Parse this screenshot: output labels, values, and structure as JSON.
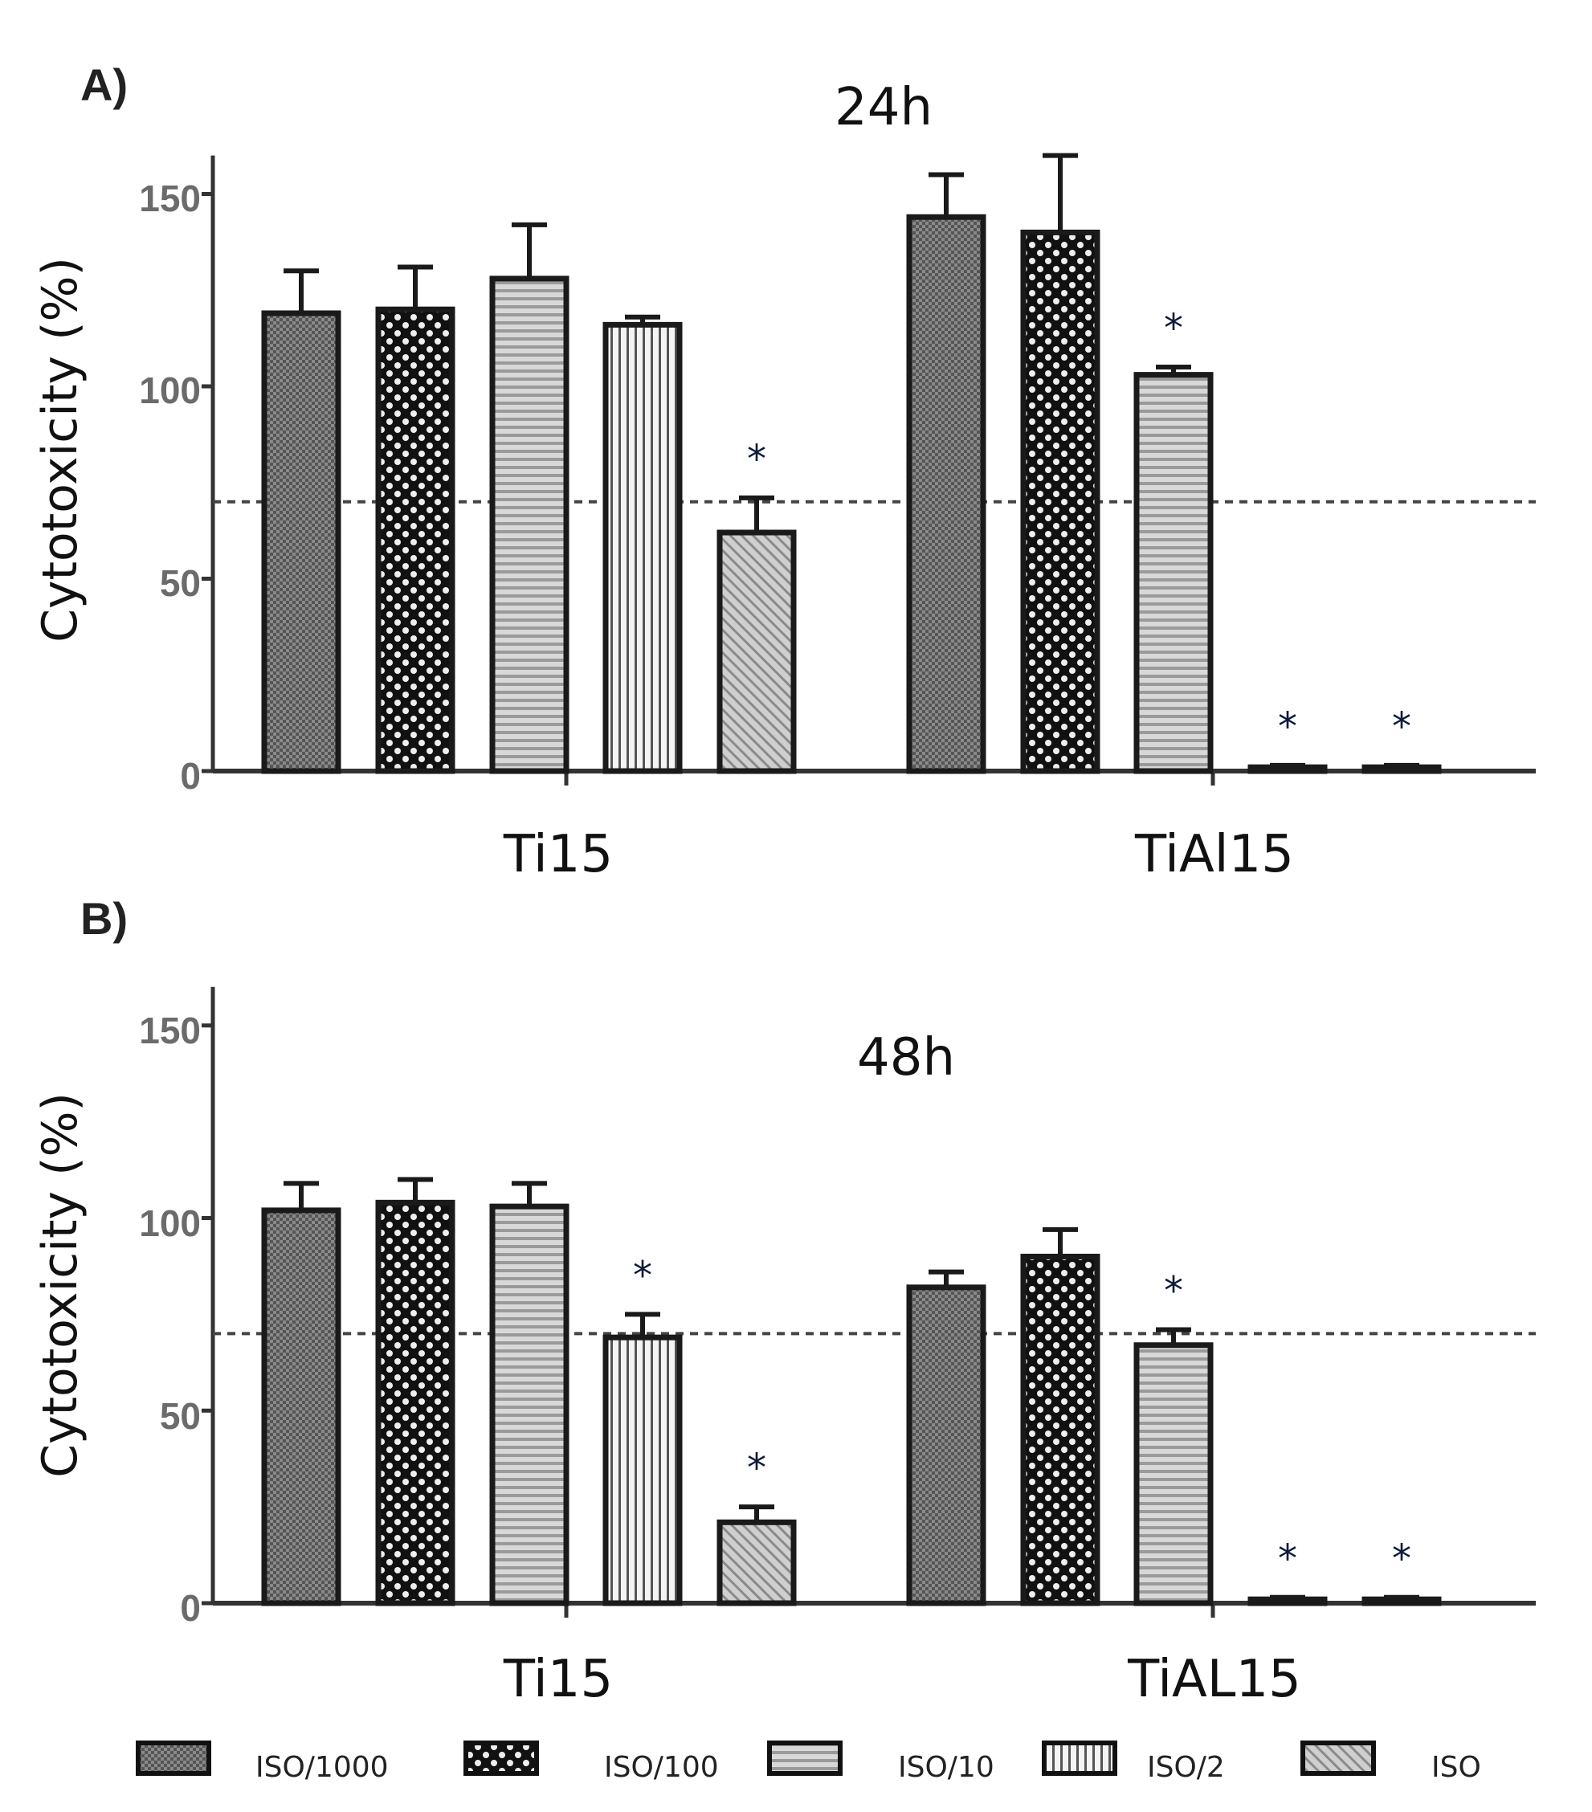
{
  "figure": {
    "legend": [
      {
        "label": "ISO/1000",
        "pattern": "dots"
      },
      {
        "label": "ISO/100",
        "pattern": "checker"
      },
      {
        "label": "ISO/10",
        "pattern": "hlines"
      },
      {
        "label": "ISO/2",
        "pattern": "vlines"
      },
      {
        "label": "ISO",
        "pattern": "diag"
      }
    ]
  },
  "chart_data": [
    {
      "type": "bar",
      "panel_label": "A)",
      "title": "24h",
      "ylabel": "Cytotoxicity (%)",
      "ylim": [
        0,
        160
      ],
      "yticks": [
        "0",
        "50",
        "100",
        "150"
      ],
      "reference_line": 70,
      "groups": [
        "Ti15",
        "TiAl15"
      ],
      "series": [
        {
          "name": "ISO/1000",
          "values": [
            119,
            144
          ],
          "errors": [
            11,
            11
          ],
          "significant": [
            false,
            false
          ]
        },
        {
          "name": "ISO/100",
          "values": [
            120,
            140
          ],
          "errors": [
            11,
            20
          ],
          "significant": [
            false,
            false
          ]
        },
        {
          "name": "ISO/10",
          "values": [
            128,
            103
          ],
          "errors": [
            14,
            2
          ],
          "significant": [
            false,
            true
          ]
        },
        {
          "name": "ISO/2",
          "values": [
            116,
            1
          ],
          "errors": [
            2,
            0.5
          ],
          "significant": [
            false,
            true
          ]
        },
        {
          "name": "ISO",
          "values": [
            62,
            1
          ],
          "errors": [
            9,
            0.5
          ],
          "significant": [
            true,
            true
          ]
        }
      ],
      "significance_marker": "*"
    },
    {
      "type": "bar",
      "panel_label": "B)",
      "title": "48h",
      "ylabel": "Cytotoxicity (%)",
      "ylim": [
        0,
        160
      ],
      "yticks": [
        "0",
        "50",
        "100",
        "150"
      ],
      "reference_line": 70,
      "groups": [
        "Ti15",
        "TiAL15"
      ],
      "series": [
        {
          "name": "ISO/1000",
          "values": [
            102,
            82
          ],
          "errors": [
            7,
            4
          ],
          "significant": [
            false,
            false
          ]
        },
        {
          "name": "ISO/100",
          "values": [
            104,
            90
          ],
          "errors": [
            6,
            7
          ],
          "significant": [
            false,
            false
          ]
        },
        {
          "name": "ISO/10",
          "values": [
            103,
            67
          ],
          "errors": [
            6,
            4
          ],
          "significant": [
            false,
            true
          ]
        },
        {
          "name": "ISO/2",
          "values": [
            69,
            1
          ],
          "errors": [
            6,
            0.5
          ],
          "significant": [
            true,
            true
          ]
        },
        {
          "name": "ISO",
          "values": [
            21,
            1
          ],
          "errors": [
            4,
            0.5
          ],
          "significant": [
            true,
            true
          ]
        }
      ],
      "significance_marker": "*"
    }
  ]
}
